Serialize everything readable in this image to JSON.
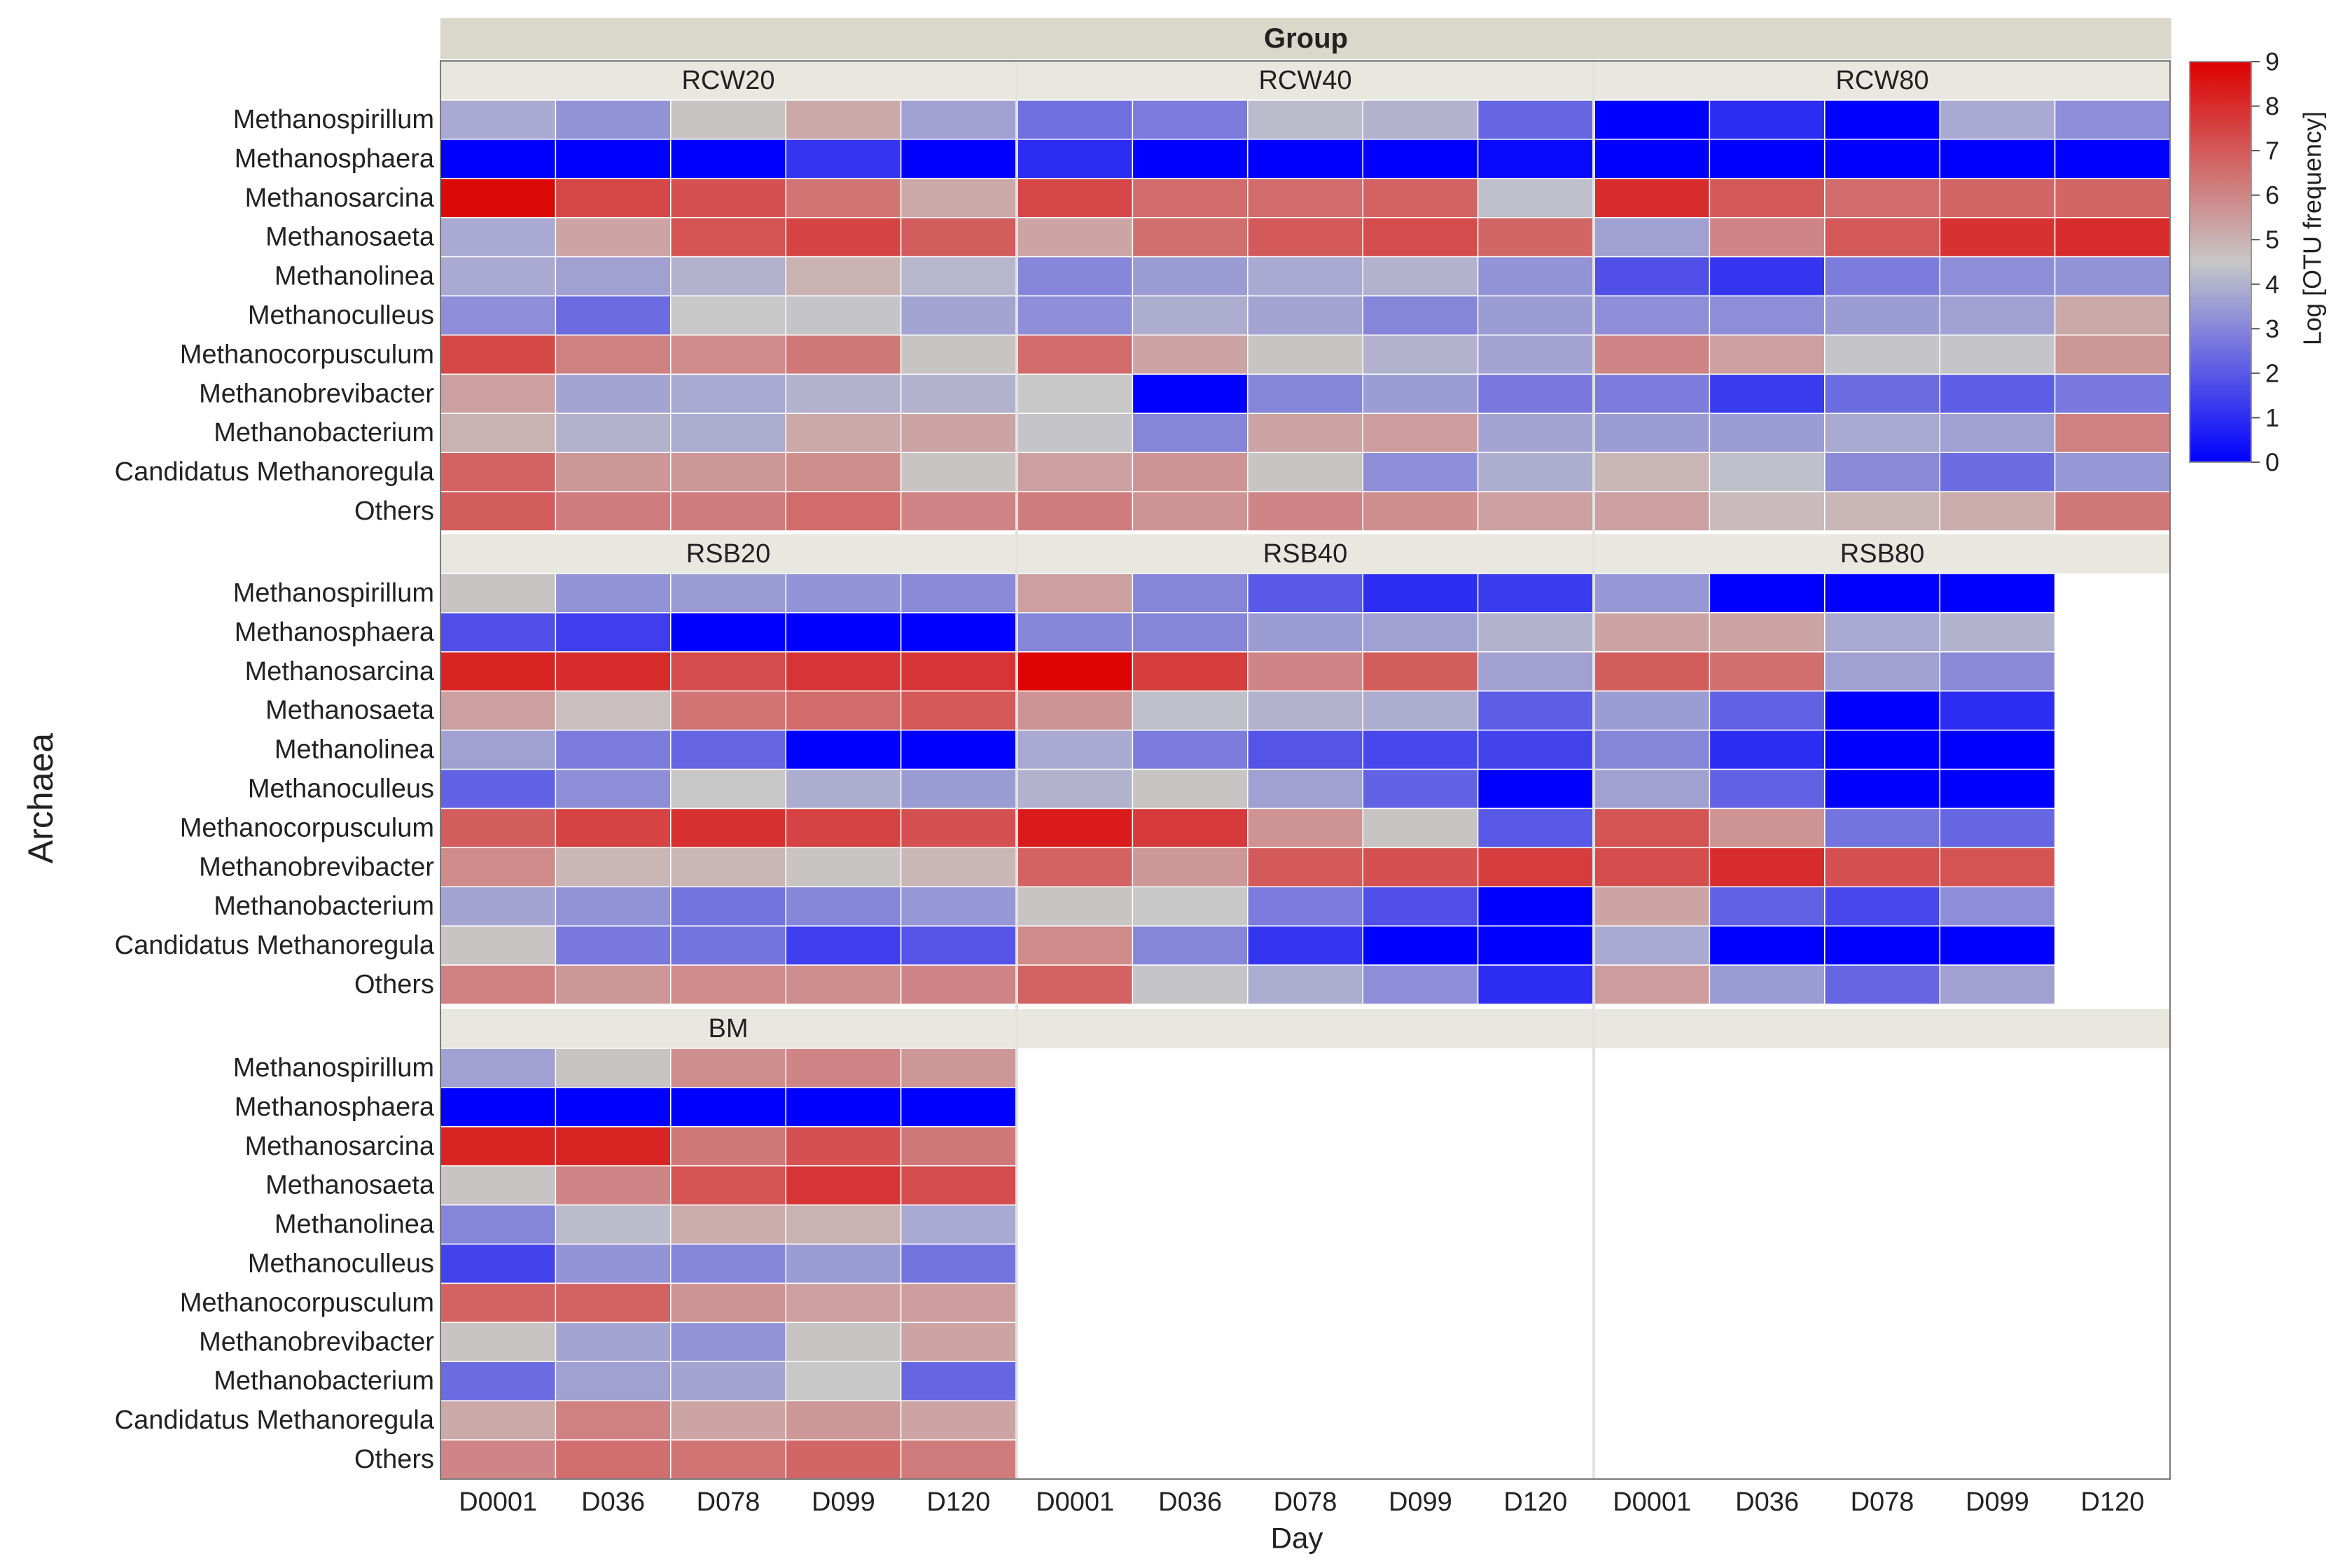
{
  "chart_data": {
    "type": "heatmap",
    "title": "Group",
    "xlabel": "Day",
    "ylabel": "Archaea",
    "days": [
      "D0001",
      "D036",
      "D078",
      "D099",
      "D120"
    ],
    "taxa": [
      "Methanospirillum",
      "Methanosphaera",
      "Methanosarcina",
      "Methanosaeta",
      "Methanolinea",
      "Methanoculleus",
      "Methanocorpusculum",
      "Methanobrevibacter",
      "Methanobacterium",
      "Candidatus Methanoregula",
      "Others"
    ],
    "colorbar": {
      "label": "Log [OTU frequency]",
      "min": 0,
      "max": 9,
      "ticks": [
        "0",
        "1",
        "2",
        "3",
        "4",
        "5",
        "6",
        "7",
        "8",
        "9"
      ],
      "low_color": "#0000ff",
      "mid_color": "#c8c8c8",
      "high_color": "#dd0000",
      "mid_value": 4.5
    },
    "colors": {
      "strip_header": "#dad8cb",
      "strip": "#e9e8e0",
      "divider": "#e2e2e2",
      "frame": "#7a7a7a",
      "cell_border": "#ffffff"
    },
    "panels": [
      {
        "name": "RCW20",
        "values": [
          [
            3.8,
            3.3,
            4.6,
            5.2,
            3.6
          ],
          [
            0.0,
            0.0,
            0.0,
            1.2,
            0.0
          ],
          [
            8.8,
            7.4,
            7.2,
            6.4,
            5.2
          ],
          [
            3.8,
            5.3,
            7.1,
            7.5,
            6.9
          ],
          [
            3.8,
            3.6,
            4.0,
            5.0,
            4.1
          ],
          [
            3.2,
            2.4,
            4.5,
            4.4,
            3.7
          ],
          [
            7.4,
            6.1,
            5.9,
            6.3,
            4.6
          ],
          [
            5.4,
            3.7,
            3.8,
            4.0,
            4.0
          ],
          [
            5.0,
            4.0,
            3.9,
            5.2,
            5.3
          ],
          [
            6.8,
            5.6,
            5.6,
            5.8,
            4.6
          ],
          [
            6.9,
            6.2,
            6.2,
            6.6,
            6.0
          ]
        ]
      },
      {
        "name": "RCW40",
        "values": [
          [
            2.5,
            2.8,
            4.2,
            4.0,
            2.3
          ],
          [
            1.0,
            0.0,
            0.0,
            0.0,
            0.2
          ],
          [
            7.4,
            6.6,
            6.6,
            6.8,
            4.3
          ],
          [
            5.3,
            6.5,
            7.0,
            7.3,
            6.7
          ],
          [
            3.0,
            3.5,
            3.8,
            4.0,
            3.3
          ],
          [
            3.2,
            3.9,
            3.7,
            3.0,
            3.5
          ],
          [
            6.6,
            5.3,
            4.6,
            4.0,
            3.7
          ],
          [
            4.5,
            0.0,
            3.0,
            3.5,
            2.7
          ],
          [
            4.4,
            3.0,
            5.3,
            5.5,
            3.7
          ],
          [
            5.4,
            5.7,
            4.6,
            3.2,
            3.9
          ],
          [
            6.2,
            5.7,
            6.0,
            5.8,
            5.4
          ]
        ]
      },
      {
        "name": "RCW80",
        "values": [
          [
            0.0,
            1.0,
            0.0,
            3.8,
            3.2
          ],
          [
            0.0,
            0.0,
            0.0,
            0.0,
            0.0
          ],
          [
            8.0,
            7.0,
            6.6,
            6.7,
            6.7
          ],
          [
            3.6,
            6.0,
            7.0,
            7.9,
            8.0
          ],
          [
            1.8,
            1.2,
            2.8,
            3.2,
            3.3
          ],
          [
            3.2,
            3.2,
            3.5,
            3.6,
            5.2
          ],
          [
            6.0,
            5.4,
            4.4,
            4.4,
            5.6
          ],
          [
            2.8,
            1.3,
            2.4,
            2.1,
            2.7
          ],
          [
            3.5,
            3.5,
            3.8,
            3.6,
            6.1
          ],
          [
            4.9,
            4.3,
            3.1,
            2.4,
            3.4
          ],
          [
            5.4,
            4.8,
            4.9,
            5.1,
            6.3
          ]
        ]
      },
      {
        "name": "RSB20",
        "values": [
          [
            4.6,
            3.3,
            3.5,
            3.3,
            3.1
          ],
          [
            1.8,
            1.4,
            0.0,
            0.0,
            0.0
          ],
          [
            8.2,
            8.0,
            7.3,
            7.8,
            7.8
          ],
          [
            5.4,
            4.7,
            6.4,
            6.6,
            7.0
          ],
          [
            3.6,
            2.8,
            2.3,
            0.0,
            0.0
          ],
          [
            2.2,
            3.2,
            4.5,
            3.9,
            3.5
          ],
          [
            6.9,
            7.5,
            7.9,
            7.5,
            7.2
          ],
          [
            5.9,
            4.9,
            4.9,
            4.6,
            4.9
          ],
          [
            3.7,
            3.3,
            2.6,
            3.0,
            3.4
          ],
          [
            4.6,
            2.7,
            2.6,
            1.4,
            1.9
          ],
          [
            6.1,
            5.6,
            5.9,
            5.8,
            6.0
          ]
        ]
      },
      {
        "name": "RSB40",
        "values": [
          [
            5.4,
            3.0,
            2.0,
            1.0,
            1.3
          ],
          [
            3.0,
            3.0,
            3.5,
            3.6,
            4.0
          ],
          [
            8.9,
            7.6,
            6.0,
            6.9,
            3.6
          ],
          [
            5.7,
            4.3,
            4.0,
            3.9,
            2.1
          ],
          [
            3.8,
            2.8,
            1.9,
            1.6,
            1.5
          ],
          [
            4.0,
            4.6,
            3.6,
            2.2,
            0.0
          ],
          [
            8.4,
            7.7,
            5.7,
            4.6,
            2.0
          ],
          [
            6.8,
            5.6,
            7.0,
            7.2,
            7.6
          ],
          [
            4.6,
            4.5,
            2.8,
            1.8,
            0.0
          ],
          [
            5.9,
            3.0,
            1.2,
            0.0,
            0.0
          ],
          [
            6.8,
            4.4,
            3.9,
            3.2,
            1.0
          ]
        ]
      },
      {
        "name": "RSB80",
        "values": [
          [
            3.4,
            0.0,
            0.0,
            0.0,
            null
          ],
          [
            5.3,
            5.3,
            3.8,
            4.0,
            null
          ],
          [
            6.9,
            6.5,
            3.6,
            3.1,
            null
          ],
          [
            3.5,
            2.2,
            0.0,
            1.0,
            null
          ],
          [
            3.0,
            1.0,
            0.0,
            0.0,
            null
          ],
          [
            3.6,
            2.2,
            0.0,
            0.0,
            null
          ],
          [
            7.1,
            5.7,
            2.6,
            2.3,
            null
          ],
          [
            7.3,
            8.0,
            7.2,
            7.1,
            null
          ],
          [
            5.3,
            2.2,
            1.6,
            3.2,
            null
          ],
          [
            3.8,
            0.0,
            0.0,
            0.0,
            null
          ],
          [
            5.5,
            3.5,
            2.3,
            3.6,
            null
          ]
        ]
      },
      {
        "name": "BM",
        "values": [
          [
            3.6,
            4.6,
            5.8,
            6.0,
            5.6
          ],
          [
            0.0,
            0.0,
            0.0,
            0.0,
            0.0
          ],
          [
            8.2,
            8.2,
            6.3,
            7.2,
            6.3
          ],
          [
            4.6,
            6.0,
            7.1,
            7.8,
            7.3
          ],
          [
            3.0,
            4.2,
            5.1,
            5.0,
            3.8
          ],
          [
            1.5,
            3.3,
            3.0,
            3.5,
            2.6
          ],
          [
            6.8,
            6.8,
            5.7,
            5.4,
            5.5
          ],
          [
            4.6,
            3.7,
            3.3,
            4.6,
            5.3
          ],
          [
            2.4,
            3.6,
            3.7,
            4.5,
            2.3
          ],
          [
            5.2,
            6.1,
            5.3,
            5.6,
            5.3
          ],
          [
            6.0,
            6.5,
            6.4,
            6.7,
            6.2
          ]
        ]
      },
      {
        "name": "",
        "values": []
      },
      {
        "name": "",
        "values": []
      }
    ]
  }
}
